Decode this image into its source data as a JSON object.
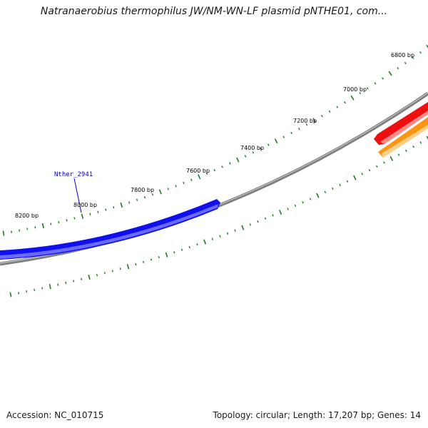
{
  "title": "Natranaerobius thermophilus JW/NM-WN-LF plasmid pNTHE01, com...",
  "colors": {
    "tick": "#1f7a1f",
    "backbone": "#808080",
    "backbone_highlight": "#cccccc",
    "gene_blue": "#1010ee",
    "gene_blue_light": "#6a6aff",
    "gene_red": "#ee1010",
    "gene_red_light": "#ff8a8a",
    "gene_orange": "#ff9411",
    "gene_orange_light": "#ffd08a",
    "label_line": "#0000cc"
  },
  "tick_labels": [
    {
      "text": "6800 bp"
    },
    {
      "text": "7000 bp"
    },
    {
      "text": "7200 bp"
    },
    {
      "text": "7400 bp"
    },
    {
      "text": "7600 bp"
    },
    {
      "text": "7800 bp"
    },
    {
      "text": "8000 bp"
    },
    {
      "text": "8200 bp"
    }
  ],
  "genes": [
    {
      "name": "Nther_2941",
      "color_key": "blue"
    },
    {
      "name": "",
      "color_key": "red"
    },
    {
      "name": "",
      "color_key": "orange"
    }
  ],
  "footer": {
    "accession": "Accession: NC_010715",
    "summary": "Topology: circular; Length: 17,207 bp; Genes: 14"
  }
}
